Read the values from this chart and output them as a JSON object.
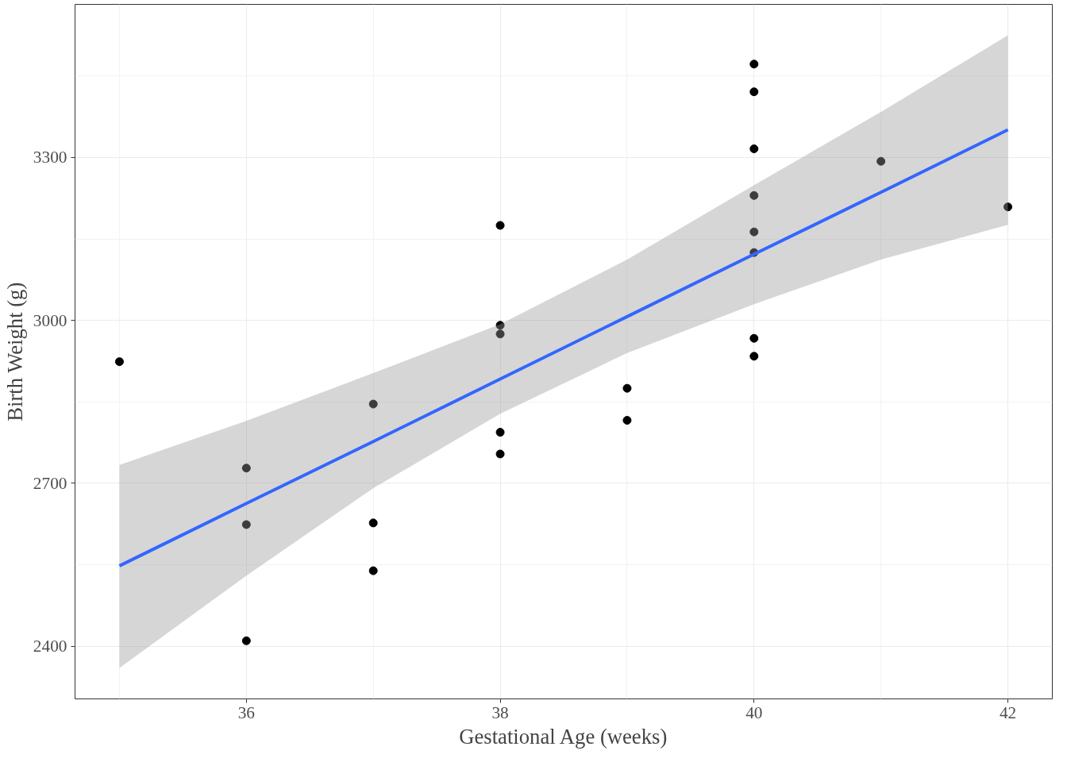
{
  "chart_data": {
    "type": "scatter",
    "xlabel": "Gestational Age (weeks)",
    "ylabel": "Birth Weight (g)",
    "xlim": [
      34.65,
      42.35
    ],
    "ylim": [
      2303,
      3582
    ],
    "xticks": [
      36,
      38,
      40,
      42
    ],
    "yticks": [
      2400,
      2700,
      3000,
      3300
    ],
    "grid": true,
    "marker": "circle",
    "series": [
      {
        "color": "#000000",
        "x": [
          35,
          36,
          36,
          36,
          37,
          37,
          37,
          38,
          38,
          38,
          38,
          38,
          39,
          39,
          40,
          40,
          40,
          40,
          40,
          40,
          40,
          40,
          41,
          42
        ],
        "values": [
          2924,
          2728,
          2624,
          2410,
          2846,
          2627,
          2539,
          3175,
          2991,
          2975,
          2794,
          2754,
          2875,
          2816,
          3472,
          3421,
          3316,
          3230,
          3163,
          3125,
          2967,
          2934,
          3293,
          3209
        ]
      },
      {
        "type": "line",
        "color": "#3366ff",
        "marker": "none",
        "line_style": "solid",
        "x": [
          35,
          36,
          37,
          38,
          39,
          40,
          41,
          42
        ],
        "values": [
          2548,
          2663,
          2777,
          2892,
          3007,
          3122,
          3236,
          3351
        ],
        "lower": [
          2360,
          2530,
          2691,
          2828,
          2940,
          3030,
          3112,
          3176
        ],
        "upper": [
          2734,
          2815,
          2903,
          2993,
          3112,
          3249,
          3384,
          3525
        ]
      }
    ]
  }
}
